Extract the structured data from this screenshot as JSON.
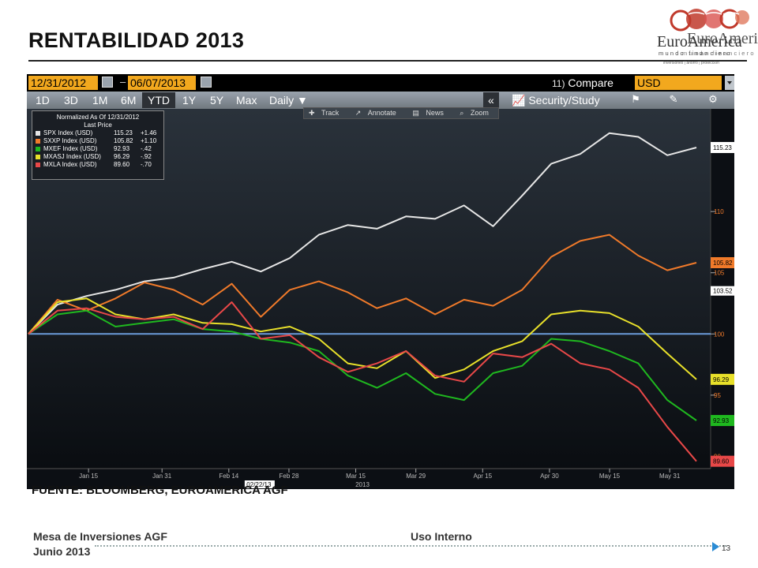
{
  "slide": {
    "title": "RENTABILIDAD 2013",
    "footnote": "FUENTE: BLOOMBERG, EUROAMERICA AGF",
    "footer_left_1": "Mesa de Inversiones AGF",
    "footer_left_2": "Junio 2013",
    "footer_mid": "Uso Interno",
    "page_number": "13"
  },
  "logo": {
    "brand_a": "EuroAmerica",
    "brand_b": "EuroAmerica",
    "tagline_a": "mundo financiero",
    "tagline_b": "mundo financiero",
    "sub": "inversiones | ahorro | protección",
    "colors": [
      "#c0392b",
      "#e07a5f"
    ]
  },
  "terminal": {
    "start_date": "12/31/2012",
    "end_date": "06/07/2013",
    "compare_num": "11)",
    "compare_label": "Compare",
    "currency": "USD",
    "periods": [
      "1D",
      "3D",
      "1M",
      "6M",
      "YTD",
      "1Y",
      "5Y",
      "Max"
    ],
    "active_period": "YTD",
    "frequency": "Daily",
    "collapse_label": "«",
    "security_label": "Security/Study",
    "tools": [
      "Track",
      "Annotate",
      "News",
      "Zoom"
    ],
    "legend_title": "Normalized As Of 12/31/2012",
    "legend_subtitle": "Last Price"
  },
  "chart_data": {
    "type": "line",
    "title": "",
    "normalized_as_of": "12/31/2012",
    "x": [
      "2012-12-31",
      "2013-01-04",
      "2013-01-11",
      "2013-01-18",
      "2013-01-25",
      "2013-02-01",
      "2013-02-08",
      "2013-02-15",
      "2013-02-22",
      "2013-03-01",
      "2013-03-08",
      "2013-03-15",
      "2013-03-22",
      "2013-03-29",
      "2013-04-05",
      "2013-04-12",
      "2013-04-19",
      "2013-04-26",
      "2013-05-03",
      "2013-05-10",
      "2013-05-17",
      "2013-05-24",
      "2013-05-31",
      "2013-06-07"
    ],
    "xlabel": "2013",
    "x_ticks": [
      "Jan 15",
      "Jan 31",
      "Feb 14",
      "Feb 28",
      "Mar 15",
      "Mar 29",
      "Apr 15",
      "Apr 30",
      "May 15",
      "May 31"
    ],
    "x_tick_pos": [
      0.09,
      0.2,
      0.3,
      0.39,
      0.49,
      0.58,
      0.68,
      0.78,
      0.87,
      0.96
    ],
    "highlight_date": "02/22/13",
    "ylim": [
      89,
      118
    ],
    "y_ticks": [
      90,
      95,
      100,
      105,
      110
    ],
    "reference_line": 100,
    "extra_label": "103.52",
    "series": [
      {
        "name": "SPX Index (USD)",
        "color": "#e6e6e6",
        "last": "115.23",
        "change": "+1.46",
        "values": [
          100,
          102.4,
          103.1,
          103.6,
          104.3,
          104.6,
          105.3,
          105.9,
          105.1,
          106.2,
          108.1,
          108.9,
          108.6,
          109.6,
          109.4,
          110.5,
          108.8,
          111.3,
          113.9,
          114.7,
          116.4,
          116.1,
          114.6,
          115.23
        ]
      },
      {
        "name": "SXXP Index (USD)",
        "color": "#f07a2a",
        "last": "105.82",
        "change": "+1.10",
        "values": [
          100,
          102.8,
          101.9,
          102.9,
          104.2,
          103.6,
          102.4,
          104.1,
          101.4,
          103.6,
          104.3,
          103.4,
          102.1,
          102.9,
          101.6,
          102.8,
          102.3,
          103.6,
          106.3,
          107.6,
          108.1,
          106.4,
          105.2,
          105.82
        ]
      },
      {
        "name": "MXEF Index (USD)",
        "color": "#1fb81f",
        "last": "92.93",
        "change": "-.42",
        "values": [
          100,
          101.6,
          101.9,
          100.6,
          100.9,
          101.2,
          100.4,
          100.2,
          99.6,
          99.3,
          98.6,
          96.6,
          95.6,
          96.8,
          95.1,
          94.6,
          96.8,
          97.4,
          99.6,
          99.4,
          98.6,
          97.6,
          94.6,
          92.93
        ]
      },
      {
        "name": "MXASJ Index (USD)",
        "color": "#e8e02a",
        "last": "96.29",
        "change": "-.92",
        "values": [
          100,
          102.6,
          102.9,
          101.6,
          101.2,
          101.6,
          100.9,
          100.8,
          100.2,
          100.6,
          99.6,
          97.6,
          97.2,
          98.6,
          96.4,
          97.1,
          98.6,
          99.4,
          101.6,
          101.9,
          101.7,
          100.6,
          98.4,
          96.29
        ]
      },
      {
        "name": "MXLA Index (USD)",
        "color": "#e84848",
        "last": "89.60",
        "change": "-.70",
        "values": [
          100,
          101.9,
          102.1,
          101.4,
          101.2,
          101.4,
          100.4,
          102.6,
          99.6,
          99.9,
          98.1,
          96.9,
          97.6,
          98.6,
          96.6,
          96.1,
          98.4,
          98.1,
          99.2,
          97.6,
          97.1,
          95.6,
          92.4,
          89.6
        ]
      }
    ]
  }
}
